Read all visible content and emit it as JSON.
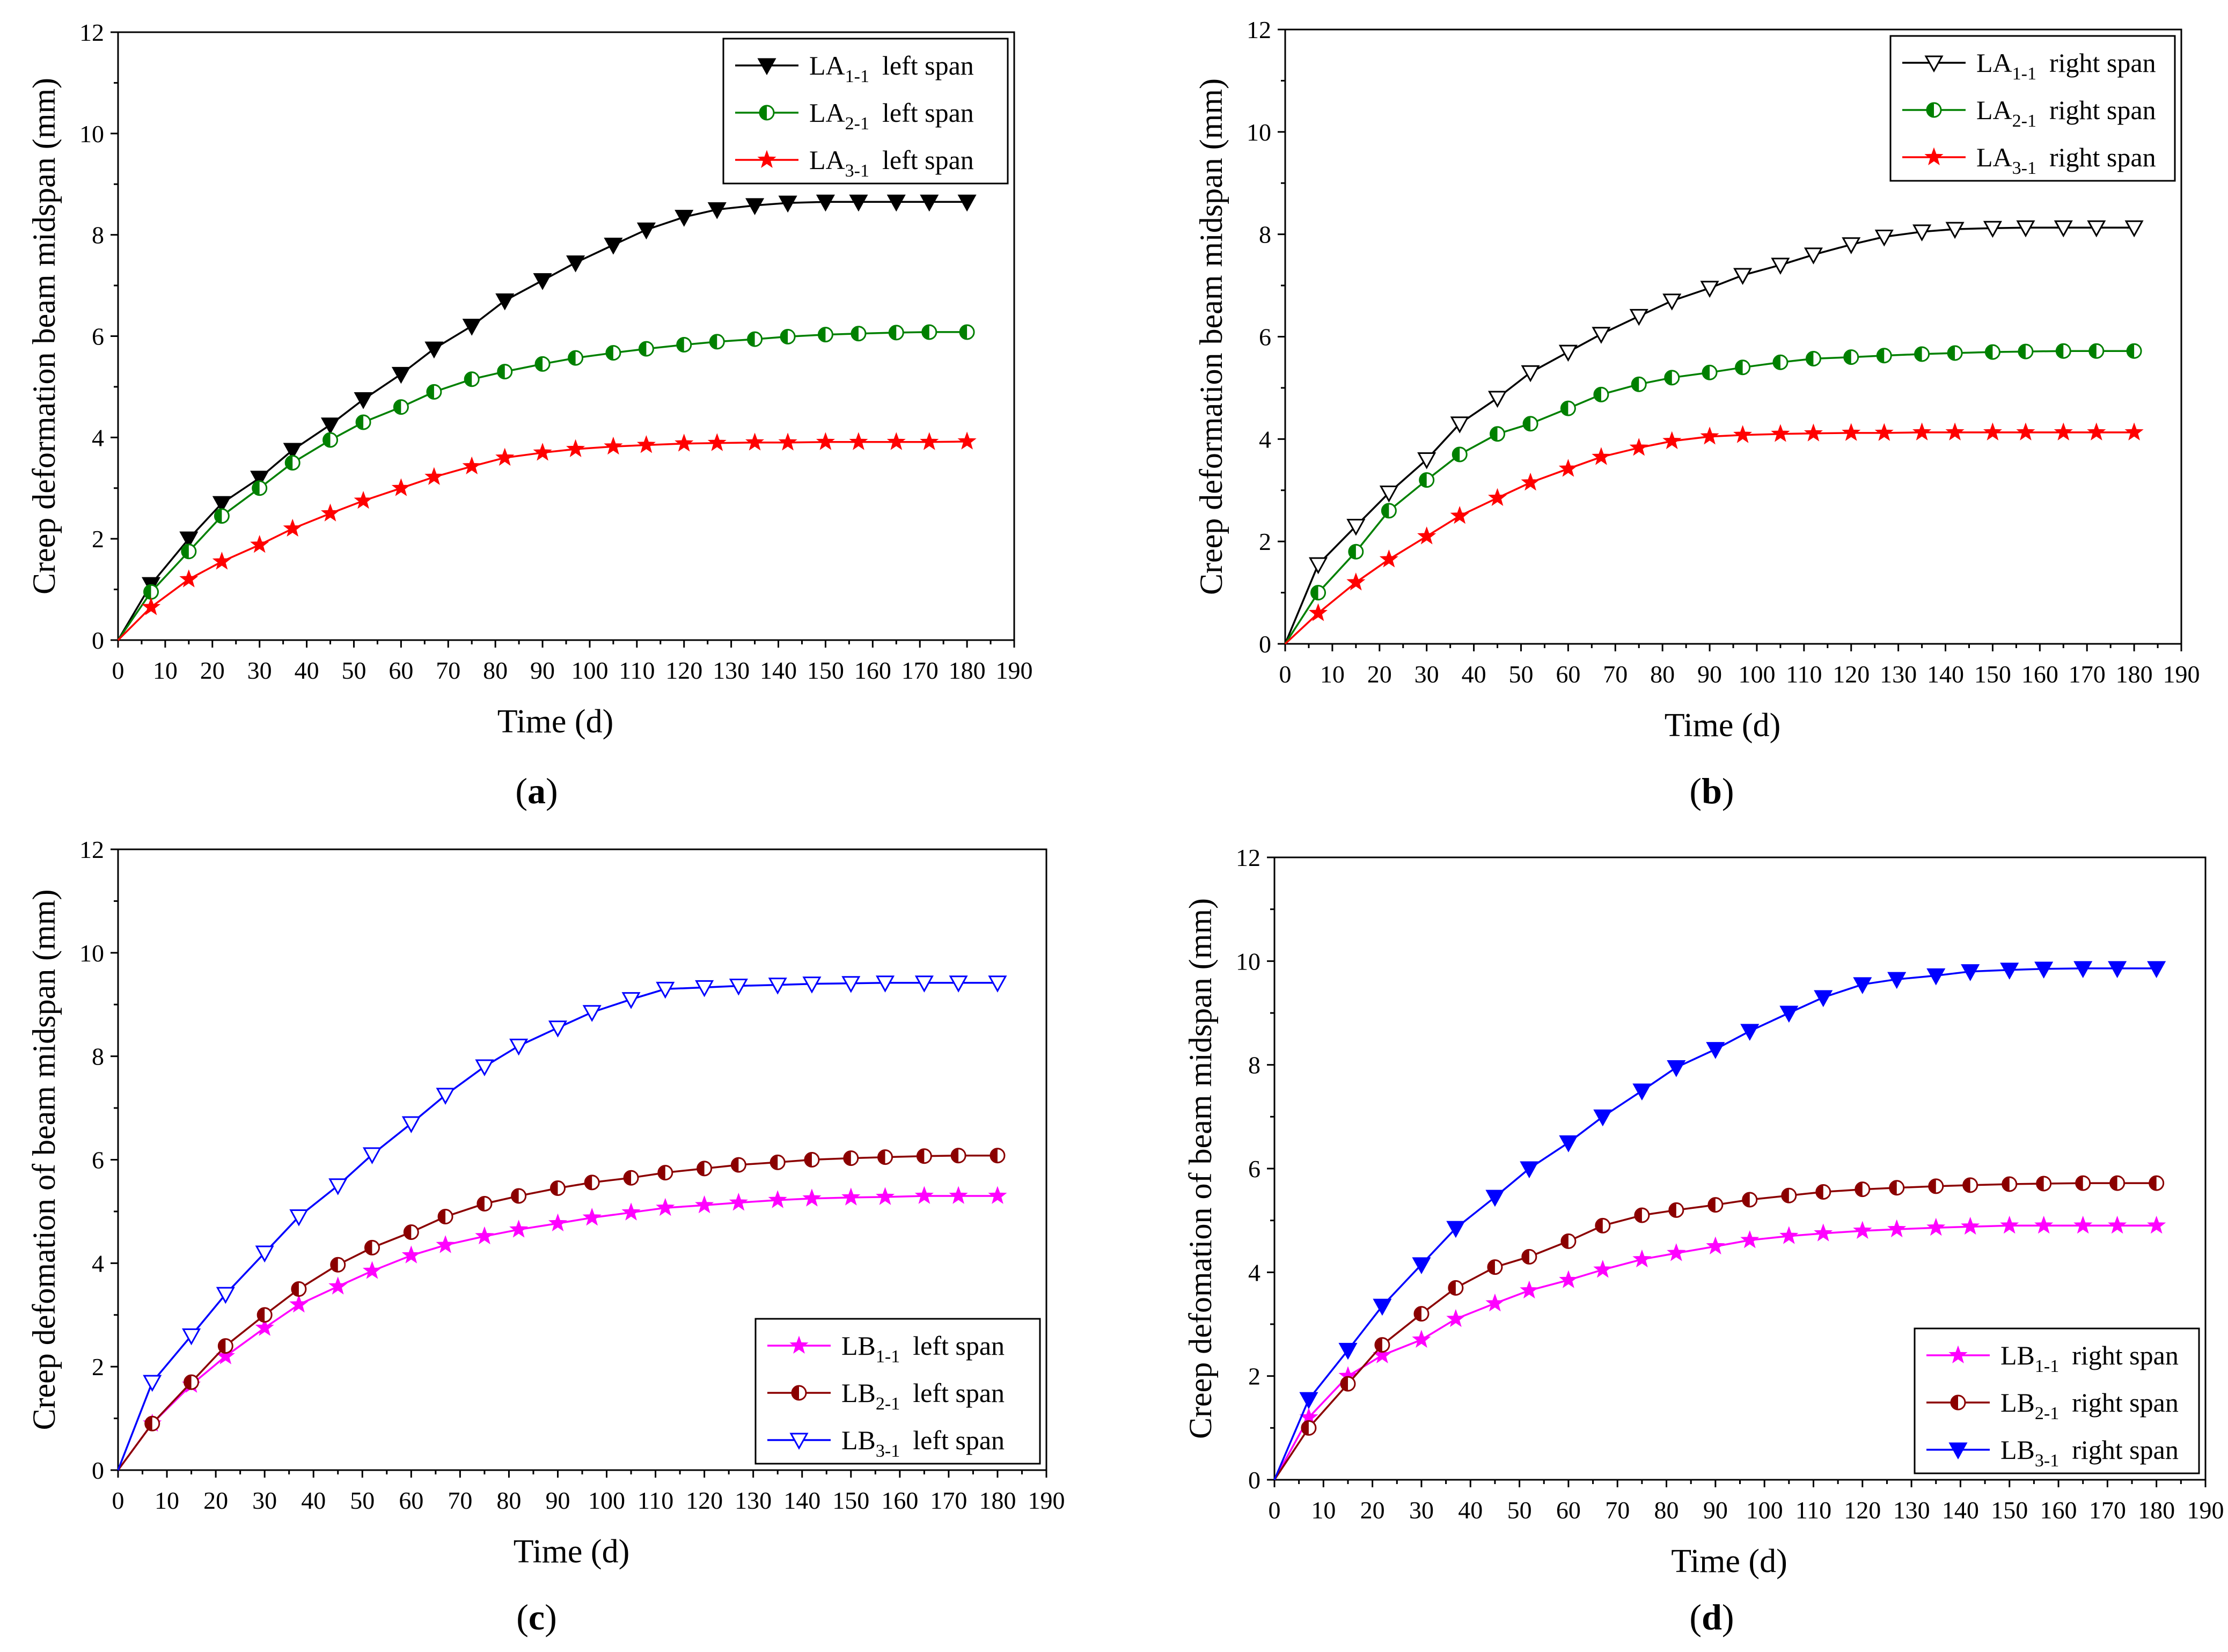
{
  "figure": {
    "panels": [
      {
        "open": "(",
        "letter": "a",
        "close": ")"
      },
      {
        "open": "(",
        "letter": "b",
        "close": ")"
      },
      {
        "open": "(",
        "letter": "c",
        "close": ")"
      },
      {
        "open": "(",
        "letter": "d",
        "close": ")"
      }
    ]
  },
  "chart_data": [
    {
      "panel": "a",
      "type": "line",
      "xlabel": "Time (d)",
      "ylabel": "Creep deformation beam midspan (mm)",
      "xlim": [
        0,
        190
      ],
      "ylim": [
        0,
        12
      ],
      "xticks": [
        0,
        10,
        20,
        30,
        40,
        50,
        60,
        70,
        80,
        90,
        100,
        110,
        120,
        130,
        140,
        150,
        160,
        170,
        180,
        190
      ],
      "yticks": [
        0,
        2,
        4,
        6,
        8,
        10,
        12
      ],
      "legend_position": "top-right",
      "x": [
        0,
        7,
        15,
        22,
        30,
        37,
        45,
        52,
        60,
        67,
        75,
        82,
        90,
        97,
        105,
        112,
        120,
        127,
        135,
        142,
        150,
        157,
        165,
        172,
        180
      ],
      "series": [
        {
          "base": "LA",
          "sub": "1-1",
          "label": "left span",
          "color": "#000000",
          "marker": "triangle-down-filled",
          "values": [
            0,
            1.1,
            2.0,
            2.7,
            3.2,
            3.75,
            4.25,
            4.75,
            5.25,
            5.75,
            6.2,
            6.7,
            7.1,
            7.45,
            7.8,
            8.1,
            8.35,
            8.5,
            8.58,
            8.63,
            8.65,
            8.65,
            8.65,
            8.65,
            8.65
          ]
        },
        {
          "base": "LA",
          "sub": "2-1",
          "label": "left span",
          "color": "#008000",
          "marker": "circle-half",
          "values": [
            0,
            0.95,
            1.75,
            2.45,
            3.0,
            3.5,
            3.95,
            4.3,
            4.6,
            4.9,
            5.15,
            5.3,
            5.45,
            5.57,
            5.67,
            5.75,
            5.83,
            5.89,
            5.94,
            5.99,
            6.03,
            6.05,
            6.07,
            6.08,
            6.08
          ]
        },
        {
          "base": "LA",
          "sub": "3-1",
          "label": "left span",
          "color": "#ff0000",
          "marker": "star",
          "values": [
            0,
            0.65,
            1.2,
            1.55,
            1.88,
            2.2,
            2.5,
            2.75,
            3.0,
            3.22,
            3.43,
            3.6,
            3.7,
            3.77,
            3.82,
            3.85,
            3.88,
            3.89,
            3.9,
            3.9,
            3.91,
            3.91,
            3.91,
            3.91,
            3.92
          ]
        }
      ]
    },
    {
      "panel": "b",
      "type": "line",
      "xlabel": "Time (d)",
      "ylabel": "Creep deformation beam midspan (mm)",
      "xlim": [
        0,
        190
      ],
      "ylim": [
        0,
        12
      ],
      "xticks": [
        0,
        10,
        20,
        30,
        40,
        50,
        60,
        70,
        80,
        90,
        100,
        110,
        120,
        130,
        140,
        150,
        160,
        170,
        180,
        190
      ],
      "yticks": [
        0,
        2,
        4,
        6,
        8,
        10,
        12
      ],
      "legend_position": "top-right",
      "x": [
        0,
        7,
        15,
        22,
        30,
        37,
        45,
        52,
        60,
        67,
        75,
        82,
        90,
        97,
        105,
        112,
        120,
        127,
        135,
        142,
        150,
        157,
        165,
        172,
        180
      ],
      "series": [
        {
          "base": "LA",
          "sub": "1-1",
          "label": "right span",
          "color": "#000000",
          "marker": "triangle-down-open",
          "values": [
            0,
            1.55,
            2.3,
            2.95,
            3.6,
            4.3,
            4.8,
            5.3,
            5.7,
            6.05,
            6.4,
            6.7,
            6.95,
            7.2,
            7.4,
            7.6,
            7.8,
            7.95,
            8.05,
            8.1,
            8.12,
            8.13,
            8.13,
            8.13,
            8.13
          ]
        },
        {
          "base": "LA",
          "sub": "2-1",
          "label": "right span",
          "color": "#008000",
          "marker": "circle-half",
          "values": [
            0,
            1.0,
            1.8,
            2.6,
            3.2,
            3.7,
            4.1,
            4.3,
            4.6,
            4.87,
            5.07,
            5.2,
            5.3,
            5.4,
            5.5,
            5.57,
            5.6,
            5.63,
            5.66,
            5.68,
            5.7,
            5.71,
            5.72,
            5.72,
            5.72
          ]
        },
        {
          "base": "LA",
          "sub": "3-1",
          "label": "right span",
          "color": "#ff0000",
          "marker": "star",
          "values": [
            0,
            0.6,
            1.2,
            1.65,
            2.1,
            2.5,
            2.85,
            3.15,
            3.42,
            3.65,
            3.83,
            3.96,
            4.05,
            4.08,
            4.1,
            4.11,
            4.12,
            4.12,
            4.13,
            4.13,
            4.13,
            4.13,
            4.13,
            4.13,
            4.13
          ]
        }
      ]
    },
    {
      "panel": "c",
      "type": "line",
      "xlabel": "Time (d)",
      "ylabel": "Creep defomation of beam midspan (mm)",
      "xlim": [
        0,
        190
      ],
      "ylim": [
        0,
        12
      ],
      "xticks": [
        0,
        10,
        20,
        30,
        40,
        50,
        60,
        70,
        80,
        90,
        100,
        110,
        120,
        130,
        140,
        150,
        160,
        170,
        180,
        190
      ],
      "yticks": [
        0,
        2,
        4,
        6,
        8,
        10,
        12
      ],
      "legend_position": "bottom-right",
      "x": [
        0,
        7,
        15,
        22,
        30,
        37,
        45,
        52,
        60,
        67,
        75,
        82,
        90,
        97,
        105,
        112,
        120,
        127,
        135,
        142,
        150,
        157,
        165,
        172,
        180
      ],
      "series": [
        {
          "base": "LB",
          "sub": "1-1",
          "label": "left span",
          "color": "#ff00ff",
          "marker": "star",
          "values": [
            0,
            0.9,
            1.65,
            2.2,
            2.75,
            3.2,
            3.55,
            3.85,
            4.15,
            4.35,
            4.52,
            4.65,
            4.77,
            4.88,
            4.98,
            5.07,
            5.12,
            5.17,
            5.22,
            5.25,
            5.27,
            5.28,
            5.3,
            5.3,
            5.3
          ]
        },
        {
          "base": "LB",
          "sub": "2-1",
          "label": "left span",
          "color": "#8b0000",
          "marker": "circle-half",
          "values": [
            0,
            0.9,
            1.7,
            2.4,
            3.0,
            3.5,
            3.97,
            4.3,
            4.6,
            4.9,
            5.15,
            5.3,
            5.45,
            5.56,
            5.65,
            5.75,
            5.83,
            5.9,
            5.95,
            6.0,
            6.03,
            6.05,
            6.07,
            6.08,
            6.08
          ]
        },
        {
          "base": "LB",
          "sub": "3-1",
          "label": "left span",
          "color": "#0000ff",
          "marker": "triangle-down-open",
          "values": [
            0,
            1.7,
            2.6,
            3.4,
            4.2,
            4.9,
            5.5,
            6.1,
            6.7,
            7.25,
            7.8,
            8.2,
            8.55,
            8.85,
            9.1,
            9.3,
            9.33,
            9.36,
            9.38,
            9.4,
            9.41,
            9.42,
            9.42,
            9.42,
            9.42
          ]
        }
      ]
    },
    {
      "panel": "d",
      "type": "line",
      "xlabel": "Time (d)",
      "ylabel": "Creep defomation of beam midspan (mm)",
      "xlim": [
        0,
        190
      ],
      "ylim": [
        0,
        12
      ],
      "xticks": [
        0,
        10,
        20,
        30,
        40,
        50,
        60,
        70,
        80,
        90,
        100,
        110,
        120,
        130,
        140,
        150,
        160,
        170,
        180,
        190
      ],
      "yticks": [
        0,
        2,
        4,
        6,
        8,
        10,
        12
      ],
      "legend_position": "bottom-right",
      "x": [
        0,
        7,
        15,
        22,
        30,
        37,
        45,
        52,
        60,
        67,
        75,
        82,
        90,
        97,
        105,
        112,
        120,
        127,
        135,
        142,
        150,
        157,
        165,
        172,
        180
      ],
      "series": [
        {
          "base": "LB",
          "sub": "1-1",
          "label": "right span",
          "color": "#ff00ff",
          "marker": "star",
          "values": [
            0,
            1.2,
            2.0,
            2.4,
            2.7,
            3.1,
            3.4,
            3.65,
            3.85,
            4.05,
            4.25,
            4.37,
            4.5,
            4.62,
            4.7,
            4.75,
            4.8,
            4.83,
            4.86,
            4.88,
            4.9,
            4.9,
            4.9,
            4.9,
            4.9
          ]
        },
        {
          "base": "LB",
          "sub": "2-1",
          "label": "right span",
          "color": "#8b0000",
          "marker": "circle-half",
          "values": [
            0,
            1.0,
            1.85,
            2.6,
            3.2,
            3.7,
            4.1,
            4.3,
            4.6,
            4.9,
            5.1,
            5.2,
            5.3,
            5.4,
            5.48,
            5.55,
            5.6,
            5.63,
            5.66,
            5.68,
            5.7,
            5.71,
            5.72,
            5.72,
            5.72
          ]
        },
        {
          "base": "LB",
          "sub": "3-1",
          "label": "right span",
          "color": "#0000ff",
          "marker": "triangle-down-filled",
          "values": [
            0,
            1.55,
            2.5,
            3.35,
            4.15,
            4.85,
            5.45,
            6.0,
            6.5,
            7.0,
            7.5,
            7.95,
            8.3,
            8.65,
            9.0,
            9.3,
            9.55,
            9.65,
            9.72,
            9.8,
            9.83,
            9.85,
            9.86,
            9.86,
            9.86
          ]
        }
      ]
    }
  ]
}
